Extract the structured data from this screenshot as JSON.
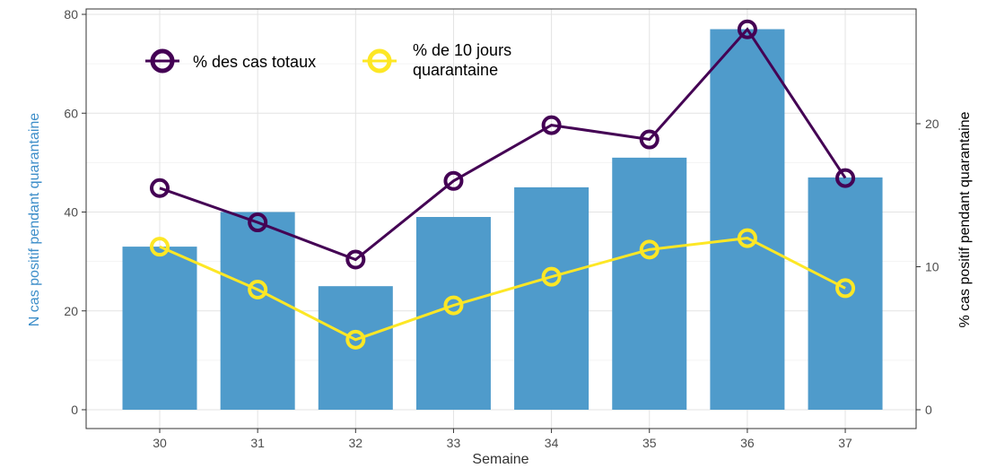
{
  "chart_data": {
    "type": "bar",
    "title": "",
    "categories": [
      "30",
      "31",
      "32",
      "33",
      "34",
      "35",
      "36",
      "37"
    ],
    "xlabel": "Semaine",
    "ylabel_left": "N cas positif pendant quarantaine",
    "ylabel_right": "% cas positif pendant quarantaine",
    "ylim_left": [
      0,
      80
    ],
    "ylim_right": [
      0,
      27.5
    ],
    "yticks_left": [
      "0",
      "20",
      "40",
      "60",
      "80"
    ],
    "yticks_right": [
      "0",
      "10",
      "20"
    ],
    "grid": true,
    "legend_position": "top-left",
    "bars": {
      "axis": "left",
      "color": "#4f9bcb",
      "values": [
        33,
        40,
        25,
        39,
        45,
        51,
        77,
        47
      ]
    },
    "series": [
      {
        "name": "% des cas totaux",
        "axis": "right",
        "color": "#440154",
        "values": [
          15.5,
          13.1,
          10.5,
          16.0,
          19.9,
          18.9,
          26.6,
          16.2
        ]
      },
      {
        "name": "% de 10 jours quarantaine",
        "axis": "right",
        "color": "#fde725",
        "values": [
          11.4,
          8.4,
          4.9,
          7.3,
          9.3,
          11.2,
          12.0,
          8.5
        ]
      }
    ]
  }
}
